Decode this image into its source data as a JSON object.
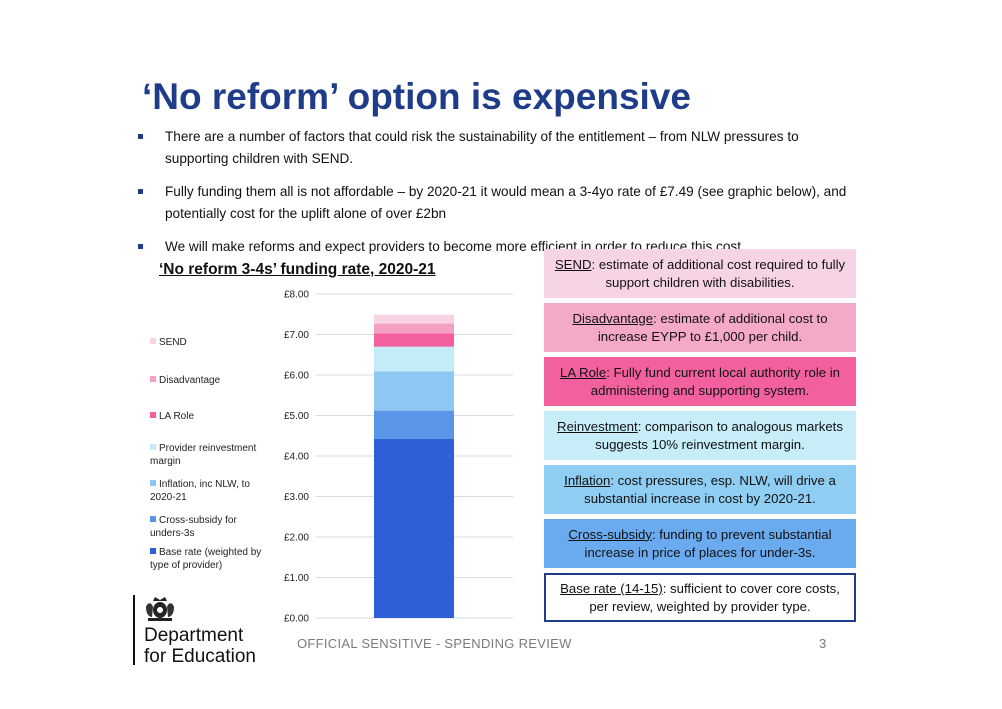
{
  "title": "‘No reform’ option is expensive",
  "bullets": [
    "There are a number of factors that could risk the sustainability of the entitlement – from NLW pressures to supporting children with SEND.",
    "Fully funding them all is not affordable – by 2020-21 it would mean a 3-4yo rate of £7.49 (see graphic below), and potentially cost for the uplift alone of over £2bn",
    "We will make reforms and expect providers to become more efficient in order to reduce this cost."
  ],
  "chart_data": {
    "type": "bar",
    "stacked": true,
    "title": "‘No reform 3-4s’ funding rate, 2020-21",
    "categories": [
      ""
    ],
    "ylim": [
      0,
      8
    ],
    "yticks": [
      "£0.00",
      "£1.00",
      "£2.00",
      "£3.00",
      "£4.00",
      "£5.00",
      "£6.00",
      "£7.00",
      "£8.00"
    ],
    "grid": true,
    "legend_position": "left",
    "series": [
      {
        "name": "Base rate (weighted by type of provider)",
        "values": [
          4.42
        ],
        "color": "#2e5fd6"
      },
      {
        "name": "Cross-subsidy for unders-3s",
        "values": [
          0.7
        ],
        "color": "#5b95e8"
      },
      {
        "name": "Inflation, inc NLW, to 2020-21",
        "values": [
          0.97
        ],
        "color": "#8ec8f2"
      },
      {
        "name": "Provider reinvestment margin",
        "values": [
          0.61
        ],
        "color": "#c4ecf8"
      },
      {
        "name": "LA Role",
        "values": [
          0.33
        ],
        "color": "#f2609f"
      },
      {
        "name": "Disadvantage",
        "values": [
          0.24
        ],
        "color": "#f5a1c4"
      },
      {
        "name": "SEND",
        "values": [
          0.22
        ],
        "color": "#f8d3e4"
      }
    ]
  },
  "boxes": [
    {
      "head": "SEND",
      "text": ": estimate of additional cost required to fully support children with disabilities.",
      "bg": "#f7d4e5",
      "border": "#f7d4e5"
    },
    {
      "head": "Disadvantage",
      "text": ": estimate of additional cost to increase EYPP to £1,000 per child.",
      "bg": "#f5a9c9",
      "border": "#f5a9c9"
    },
    {
      "head": "LA Role",
      "text": ": Fully fund current local authority role in administering and supporting system.",
      "bg": "#f2609f",
      "border": "#f2609f"
    },
    {
      "head": "Reinvestment",
      "text": ": comparison to analogous markets suggests 10% reinvestment margin.",
      "bg": "#c7edf8",
      "border": "#c7edf8"
    },
    {
      "head": "Inflation",
      "text": ": cost pressures, esp. NLW, will drive a substantial increase in cost by 2020-21.",
      "bg": "#8fcdf3",
      "border": "#8fcdf3"
    },
    {
      "head": "Cross-subsidy",
      "text": ": funding to prevent substantial increase in price of places for under-3s.",
      "bg": "#6aaaee",
      "border": "#6aaaee"
    },
    {
      "head": "Base rate (14-15)",
      "text": ": sufficient to cover core costs, per review, weighted by provider type.",
      "bg": "#ffffff",
      "border": "#1f3c88"
    }
  ],
  "footer": {
    "classification": "OFFICIAL SENSITIVE - SPENDING REVIEW",
    "page_number": "3",
    "department_line1": "Department",
    "department_line2": "for Education"
  }
}
